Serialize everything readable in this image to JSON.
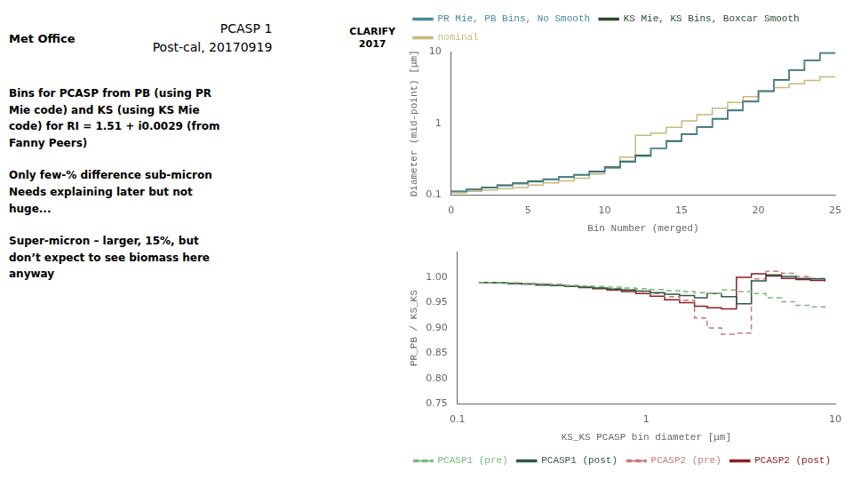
{
  "chart_data": [
    {
      "type": "step",
      "title": "PCASP 1",
      "subtitle": "Post-cal, 20170919",
      "annotations": [
        "Met Office",
        "CLARIFY",
        "2017",
        "Bins for PCASP from PB (using PR\nMie code) and KS (using KS Mie\ncode) for RI = 1.51 + i0.0029 (from\nFanny Peers)",
        "Only few-% difference sub-micron\nNeeds explaining later but not\nhuge...",
        "Super-micron – larger, 15%, but\ndon’t expect to see biomass here\nanyway"
      ],
      "x_label": "Bin Number (merged)",
      "y_label": "Diameter (mid-point) [μm]",
      "log": "y",
      "grid": false,
      "legend": "upper left",
      "xlim": [
        0,
        25
      ],
      "xticks": [
        0,
        5,
        10,
        15,
        20,
        25
      ],
      "ylim": [
        0.1,
        10
      ],
      "yticks": [
        0.1,
        1,
        10
      ],
      "x": [
        0,
        1,
        2,
        3,
        4,
        5,
        6,
        7,
        8,
        9,
        10,
        11,
        12,
        13,
        14,
        15,
        16,
        17,
        18,
        19,
        20,
        21,
        22,
        23,
        24,
        25
      ],
      "series": [
        {
          "name": "PR Mie, PB Bins, No Smooth",
          "color": "#4a8a9a",
          "line_style": "solid",
          "values": [
            0.112,
            0.119,
            0.127,
            0.135,
            0.144,
            0.154,
            0.165,
            0.177,
            0.19,
            0.21,
            0.24,
            0.29,
            0.35,
            0.45,
            0.56,
            0.7,
            0.88,
            1.15,
            1.5,
            2.0,
            2.8,
            4.0,
            5.5,
            7.5,
            9.5,
            9.5
          ]
        },
        {
          "name": "KS Mie, KS Bins, Boxcar Smooth",
          "color": "#2d4a2d",
          "line_style": "solid",
          "values": [
            0.113,
            0.121,
            0.129,
            0.138,
            0.147,
            0.157,
            0.168,
            0.18,
            0.193,
            0.215,
            0.246,
            0.296,
            0.358,
            0.45,
            0.57,
            0.71,
            0.892,
            1.16,
            1.52,
            2.03,
            2.83,
            4.05,
            5.55,
            7.55,
            9.55,
            9.55
          ]
        },
        {
          "name": "nominal",
          "color": "#c8b87a",
          "line_style": "solid",
          "values": [
            0.108,
            0.113,
            0.118,
            0.123,
            0.128,
            0.138,
            0.148,
            0.158,
            0.172,
            0.198,
            0.245,
            0.34,
            0.68,
            0.73,
            0.88,
            1.08,
            1.32,
            1.62,
            1.95,
            2.35,
            2.75,
            3.15,
            3.55,
            3.95,
            4.45,
            4.45
          ]
        }
      ]
    },
    {
      "type": "step",
      "x_label": "KS_KS PCASP bin diameter [μm]",
      "y_label": "PR_PB / KS_KS",
      "log": "x",
      "grid": false,
      "legend": "lower left",
      "xlim": [
        0.1,
        10
      ],
      "xticks": [
        0.1,
        1,
        10
      ],
      "ylim": [
        0.75,
        1.05
      ],
      "yticks": [
        0.75,
        {
          "value": 0.8,
          "label": "0.80"
        },
        0.85,
        {
          "value": 0.9,
          "label": "0.90"
        },
        0.95,
        {
          "value": 1.0,
          "label": "1.00"
        }
      ],
      "x": [
        0.13,
        0.155,
        0.185,
        0.22,
        0.26,
        0.31,
        0.37,
        0.44,
        0.52,
        0.62,
        0.74,
        0.88,
        1.05,
        1.25,
        1.5,
        1.8,
        2.1,
        2.5,
        3.0,
        3.6,
        4.3,
        5.2,
        6.2,
        7.4,
        8.8
      ],
      "series": [
        {
          "name": "PCASP1 (pre)",
          "color": "#7ab87a",
          "line_style": "dashed",
          "values": [
            0.99,
            0.99,
            0.989,
            0.988,
            0.987,
            0.986,
            0.984,
            0.983,
            0.982,
            0.981,
            0.979,
            0.978,
            0.976,
            0.974,
            0.972,
            0.97,
            0.968,
            0.975,
            0.972,
            0.968,
            0.96,
            0.952,
            0.945,
            0.942,
            0.938
          ]
        },
        {
          "name": "PCASP1 (post)",
          "color": "#2d5a4a",
          "line_style": "solid",
          "values": [
            0.99,
            0.989,
            0.988,
            0.987,
            0.985,
            0.984,
            0.982,
            0.981,
            0.979,
            0.977,
            0.975,
            0.973,
            0.97,
            0.967,
            0.964,
            0.96,
            0.968,
            0.962,
            0.948,
            0.993,
            1.005,
            1.002,
            0.998,
            0.997,
            0.995
          ]
        },
        {
          "name": "PCASP2 (pre)",
          "color": "#c87a7a",
          "line_style": "dashed",
          "values": [
            0.99,
            0.99,
            0.989,
            0.988,
            0.987,
            0.986,
            0.984,
            0.982,
            0.98,
            0.978,
            0.975,
            0.973,
            0.968,
            0.962,
            0.955,
            0.92,
            0.9,
            0.888,
            0.89,
            0.997,
            1.012,
            1.008,
            1.002,
            0.998,
            0.994
          ]
        },
        {
          "name": "PCASP2 (post)",
          "color": "#8b2020",
          "line_style": "solid",
          "values": [
            0.99,
            0.989,
            0.988,
            0.987,
            0.986,
            0.984,
            0.982,
            0.98,
            0.978,
            0.975,
            0.972,
            0.968,
            0.963,
            0.956,
            0.95,
            0.943,
            0.94,
            0.938,
            1.0,
            1.007,
            1.003,
            0.998,
            0.996,
            0.994,
            0.992
          ]
        }
      ]
    }
  ]
}
